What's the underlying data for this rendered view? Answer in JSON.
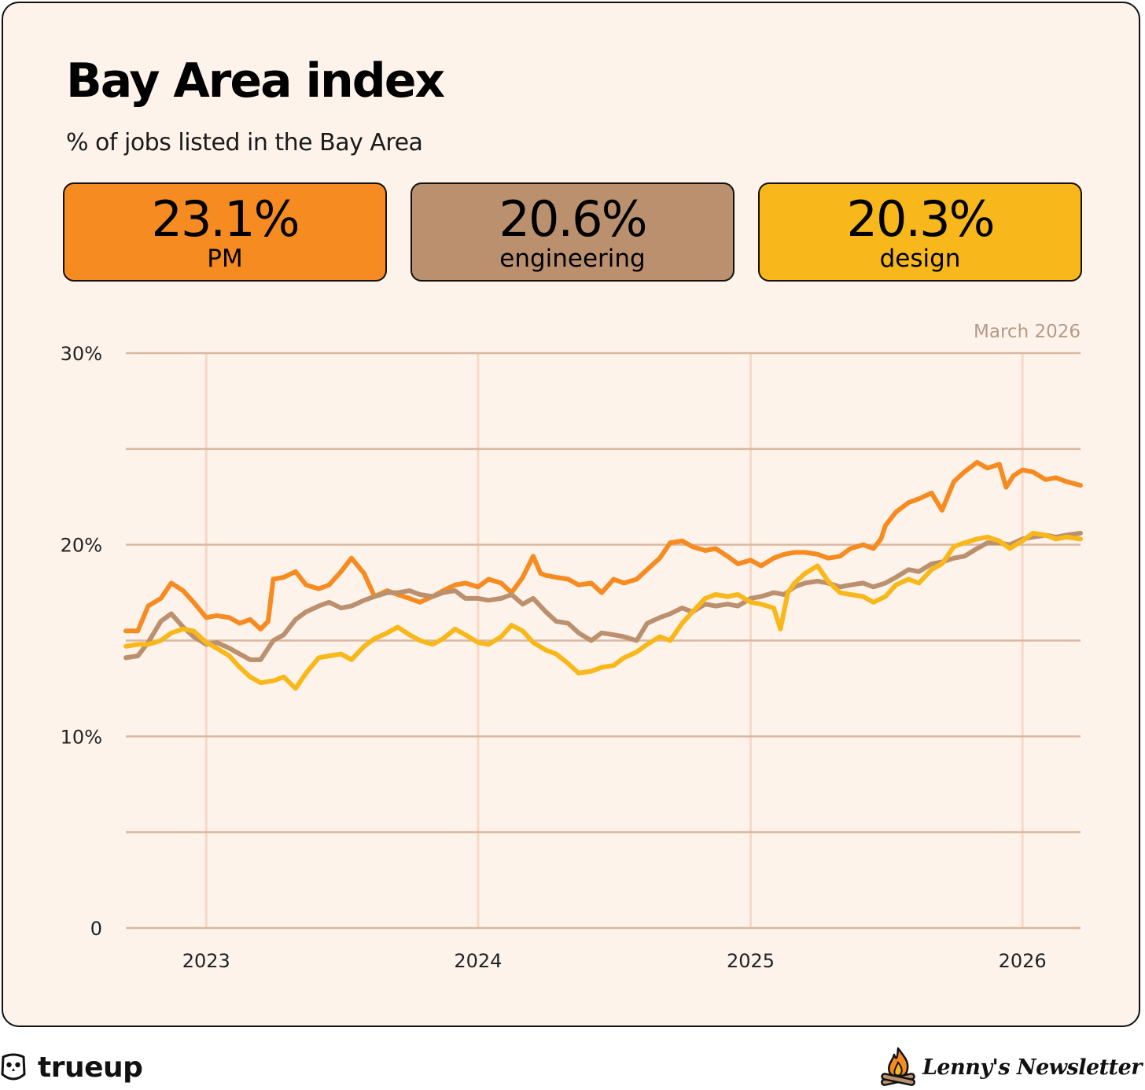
{
  "header": {
    "title": "Bay Area index",
    "subtitle": "% of jobs listed in the Bay Area"
  },
  "kpis": [
    {
      "value": "23.1%",
      "label": "PM",
      "color": "#f68b22"
    },
    {
      "value": "20.6%",
      "label": "engineering",
      "color": "#bb906e"
    },
    {
      "value": "20.3%",
      "label": "design",
      "color": "#f8b81b"
    }
  ],
  "footer": {
    "brand": "trueup",
    "newsletter": "Lenny's Newsletter"
  },
  "chart_data": {
    "type": "line",
    "date_note": "March 2026",
    "ylim": [
      0,
      30
    ],
    "y_ticks": [
      {
        "value": 30,
        "label": "30%"
      },
      {
        "value": 25,
        "label": ""
      },
      {
        "value": 20,
        "label": "20%"
      },
      {
        "value": 15,
        "label": ""
      },
      {
        "value": 10,
        "label": "10%"
      },
      {
        "value": 5,
        "label": ""
      },
      {
        "value": 0,
        "label": "0"
      }
    ],
    "xlim": [
      "2022-09-15",
      "2026-03-20"
    ],
    "x_ticks": [
      {
        "date": "2023-01-01",
        "label": "2023"
      },
      {
        "date": "2024-01-01",
        "label": "2024"
      },
      {
        "date": "2025-01-01",
        "label": "2025"
      },
      {
        "date": "2026-01-01",
        "label": "2026"
      }
    ],
    "grid": "horizontal and vertical",
    "legend": "none",
    "series": [
      {
        "name": "PM",
        "color": "#f68b22",
        "points": [
          [
            "2022-09-15",
            15.5
          ],
          [
            "2022-10-01",
            15.5
          ],
          [
            "2022-10-15",
            16.8
          ],
          [
            "2022-11-01",
            17.2
          ],
          [
            "2022-11-15",
            18.0
          ],
          [
            "2022-12-01",
            17.6
          ],
          [
            "2022-12-15",
            17.0
          ],
          [
            "2023-01-01",
            16.2
          ],
          [
            "2023-01-15",
            16.3
          ],
          [
            "2023-02-01",
            16.2
          ],
          [
            "2023-02-15",
            15.9
          ],
          [
            "2023-03-01",
            16.1
          ],
          [
            "2023-03-15",
            15.6
          ],
          [
            "2023-03-25",
            16.0
          ],
          [
            "2023-04-01",
            18.2
          ],
          [
            "2023-04-15",
            18.3
          ],
          [
            "2023-05-01",
            18.6
          ],
          [
            "2023-05-15",
            17.9
          ],
          [
            "2023-06-01",
            17.7
          ],
          [
            "2023-06-15",
            17.9
          ],
          [
            "2023-07-01",
            18.6
          ],
          [
            "2023-07-15",
            19.3
          ],
          [
            "2023-08-01",
            18.5
          ],
          [
            "2023-08-15",
            17.3
          ],
          [
            "2023-09-01",
            17.6
          ],
          [
            "2023-09-15",
            17.4
          ],
          [
            "2023-10-01",
            17.2
          ],
          [
            "2023-10-15",
            17.0
          ],
          [
            "2023-11-01",
            17.3
          ],
          [
            "2023-11-15",
            17.6
          ],
          [
            "2023-12-01",
            17.9
          ],
          [
            "2023-12-15",
            18.0
          ],
          [
            "2024-01-01",
            17.8
          ],
          [
            "2024-01-15",
            18.2
          ],
          [
            "2024-02-01",
            18.0
          ],
          [
            "2024-02-15",
            17.5
          ],
          [
            "2024-03-01",
            18.3
          ],
          [
            "2024-03-15",
            19.4
          ],
          [
            "2024-03-25",
            18.5
          ],
          [
            "2024-04-01",
            18.4
          ],
          [
            "2024-04-15",
            18.3
          ],
          [
            "2024-05-01",
            18.2
          ],
          [
            "2024-05-15",
            17.9
          ],
          [
            "2024-06-01",
            18.0
          ],
          [
            "2024-06-15",
            17.5
          ],
          [
            "2024-07-01",
            18.2
          ],
          [
            "2024-07-15",
            18.0
          ],
          [
            "2024-08-01",
            18.2
          ],
          [
            "2024-08-15",
            18.7
          ],
          [
            "2024-09-01",
            19.3
          ],
          [
            "2024-09-15",
            20.1
          ],
          [
            "2024-10-01",
            20.2
          ],
          [
            "2024-10-15",
            19.9
          ],
          [
            "2024-11-01",
            19.7
          ],
          [
            "2024-11-15",
            19.8
          ],
          [
            "2024-12-01",
            19.4
          ],
          [
            "2024-12-15",
            19.0
          ],
          [
            "2025-01-01",
            19.2
          ],
          [
            "2025-01-15",
            18.9
          ],
          [
            "2025-02-01",
            19.3
          ],
          [
            "2025-02-15",
            19.5
          ],
          [
            "2025-03-01",
            19.6
          ],
          [
            "2025-03-15",
            19.6
          ],
          [
            "2025-04-01",
            19.5
          ],
          [
            "2025-04-15",
            19.3
          ],
          [
            "2025-05-01",
            19.4
          ],
          [
            "2025-05-15",
            19.8
          ],
          [
            "2025-06-01",
            20.0
          ],
          [
            "2025-06-15",
            19.8
          ],
          [
            "2025-06-25",
            20.3
          ],
          [
            "2025-07-01",
            21.0
          ],
          [
            "2025-07-15",
            21.7
          ],
          [
            "2025-08-01",
            22.2
          ],
          [
            "2025-08-15",
            22.4
          ],
          [
            "2025-09-01",
            22.7
          ],
          [
            "2025-09-15",
            21.8
          ],
          [
            "2025-10-01",
            23.3
          ],
          [
            "2025-10-15",
            23.8
          ],
          [
            "2025-11-01",
            24.3
          ],
          [
            "2025-11-15",
            24.0
          ],
          [
            "2025-12-01",
            24.2
          ],
          [
            "2025-12-10",
            23.0
          ],
          [
            "2025-12-20",
            23.6
          ],
          [
            "2026-01-01",
            23.9
          ],
          [
            "2026-01-15",
            23.8
          ],
          [
            "2026-02-01",
            23.4
          ],
          [
            "2026-02-15",
            23.5
          ],
          [
            "2026-03-01",
            23.3
          ],
          [
            "2026-03-20",
            23.1
          ]
        ]
      },
      {
        "name": "engineering",
        "color": "#bb906e",
        "points": [
          [
            "2022-09-15",
            14.1
          ],
          [
            "2022-10-01",
            14.2
          ],
          [
            "2022-10-15",
            14.9
          ],
          [
            "2022-11-01",
            16.0
          ],
          [
            "2022-11-15",
            16.4
          ],
          [
            "2022-12-01",
            15.7
          ],
          [
            "2022-12-15",
            15.2
          ],
          [
            "2023-01-01",
            14.8
          ],
          [
            "2023-01-15",
            14.9
          ],
          [
            "2023-02-01",
            14.6
          ],
          [
            "2023-02-15",
            14.3
          ],
          [
            "2023-03-01",
            14.0
          ],
          [
            "2023-03-15",
            14.0
          ],
          [
            "2023-04-01",
            15.0
          ],
          [
            "2023-04-15",
            15.3
          ],
          [
            "2023-05-01",
            16.1
          ],
          [
            "2023-05-15",
            16.5
          ],
          [
            "2023-06-01",
            16.8
          ],
          [
            "2023-06-15",
            17.0
          ],
          [
            "2023-07-01",
            16.7
          ],
          [
            "2023-07-15",
            16.8
          ],
          [
            "2023-08-01",
            17.1
          ],
          [
            "2023-08-15",
            17.3
          ],
          [
            "2023-09-01",
            17.5
          ],
          [
            "2023-09-15",
            17.5
          ],
          [
            "2023-10-01",
            17.6
          ],
          [
            "2023-10-15",
            17.4
          ],
          [
            "2023-11-01",
            17.3
          ],
          [
            "2023-11-15",
            17.5
          ],
          [
            "2023-12-01",
            17.6
          ],
          [
            "2023-12-15",
            17.2
          ],
          [
            "2024-01-01",
            17.2
          ],
          [
            "2024-01-15",
            17.1
          ],
          [
            "2024-02-01",
            17.2
          ],
          [
            "2024-02-15",
            17.4
          ],
          [
            "2024-03-01",
            16.9
          ],
          [
            "2024-03-15",
            17.2
          ],
          [
            "2024-04-01",
            16.5
          ],
          [
            "2024-04-15",
            16.0
          ],
          [
            "2024-05-01",
            15.9
          ],
          [
            "2024-05-15",
            15.4
          ],
          [
            "2024-06-01",
            15.0
          ],
          [
            "2024-06-15",
            15.4
          ],
          [
            "2024-07-01",
            15.3
          ],
          [
            "2024-07-15",
            15.2
          ],
          [
            "2024-08-01",
            15.0
          ],
          [
            "2024-08-15",
            15.9
          ],
          [
            "2024-09-01",
            16.2
          ],
          [
            "2024-09-15",
            16.4
          ],
          [
            "2024-10-01",
            16.7
          ],
          [
            "2024-10-15",
            16.5
          ],
          [
            "2024-11-01",
            16.9
          ],
          [
            "2024-11-15",
            16.8
          ],
          [
            "2024-12-01",
            16.9
          ],
          [
            "2024-12-15",
            16.8
          ],
          [
            "2025-01-01",
            17.2
          ],
          [
            "2025-01-15",
            17.3
          ],
          [
            "2025-02-01",
            17.5
          ],
          [
            "2025-02-15",
            17.4
          ],
          [
            "2025-03-01",
            17.8
          ],
          [
            "2025-03-15",
            18.0
          ],
          [
            "2025-04-01",
            18.1
          ],
          [
            "2025-04-15",
            18.0
          ],
          [
            "2025-05-01",
            17.8
          ],
          [
            "2025-05-15",
            17.9
          ],
          [
            "2025-06-01",
            18.0
          ],
          [
            "2025-06-15",
            17.8
          ],
          [
            "2025-07-01",
            18.0
          ],
          [
            "2025-07-15",
            18.3
          ],
          [
            "2025-08-01",
            18.7
          ],
          [
            "2025-08-15",
            18.6
          ],
          [
            "2025-09-01",
            19.0
          ],
          [
            "2025-09-15",
            19.1
          ],
          [
            "2025-10-01",
            19.3
          ],
          [
            "2025-10-15",
            19.4
          ],
          [
            "2025-11-01",
            19.8
          ],
          [
            "2025-11-15",
            20.1
          ],
          [
            "2025-12-01",
            20.1
          ],
          [
            "2025-12-15",
            20.0
          ],
          [
            "2026-01-01",
            20.3
          ],
          [
            "2026-01-15",
            20.4
          ],
          [
            "2026-02-01",
            20.5
          ],
          [
            "2026-02-15",
            20.4
          ],
          [
            "2026-03-01",
            20.5
          ],
          [
            "2026-03-20",
            20.6
          ]
        ]
      },
      {
        "name": "design",
        "color": "#f8b81b",
        "points": [
          [
            "2022-09-15",
            14.7
          ],
          [
            "2022-10-01",
            14.8
          ],
          [
            "2022-10-15",
            14.8
          ],
          [
            "2022-11-01",
            15.0
          ],
          [
            "2022-11-15",
            15.4
          ],
          [
            "2022-12-01",
            15.6
          ],
          [
            "2022-12-15",
            15.5
          ],
          [
            "2023-01-01",
            14.9
          ],
          [
            "2023-01-15",
            14.6
          ],
          [
            "2023-02-01",
            14.2
          ],
          [
            "2023-02-15",
            13.6
          ],
          [
            "2023-03-01",
            13.1
          ],
          [
            "2023-03-15",
            12.8
          ],
          [
            "2023-04-01",
            12.9
          ],
          [
            "2023-04-15",
            13.1
          ],
          [
            "2023-05-01",
            12.5
          ],
          [
            "2023-05-15",
            13.3
          ],
          [
            "2023-06-01",
            14.1
          ],
          [
            "2023-06-15",
            14.2
          ],
          [
            "2023-07-01",
            14.3
          ],
          [
            "2023-07-15",
            14.0
          ],
          [
            "2023-08-01",
            14.7
          ],
          [
            "2023-08-15",
            15.1
          ],
          [
            "2023-09-01",
            15.4
          ],
          [
            "2023-09-15",
            15.7
          ],
          [
            "2023-10-01",
            15.3
          ],
          [
            "2023-10-15",
            15.0
          ],
          [
            "2023-11-01",
            14.8
          ],
          [
            "2023-11-15",
            15.1
          ],
          [
            "2023-12-01",
            15.6
          ],
          [
            "2023-12-15",
            15.3
          ],
          [
            "2024-01-01",
            14.9
          ],
          [
            "2024-01-15",
            14.8
          ],
          [
            "2024-02-01",
            15.2
          ],
          [
            "2024-02-15",
            15.8
          ],
          [
            "2024-03-01",
            15.5
          ],
          [
            "2024-03-15",
            14.9
          ],
          [
            "2024-04-01",
            14.5
          ],
          [
            "2024-04-15",
            14.3
          ],
          [
            "2024-05-01",
            13.8
          ],
          [
            "2024-05-15",
            13.3
          ],
          [
            "2024-06-01",
            13.4
          ],
          [
            "2024-06-15",
            13.6
          ],
          [
            "2024-07-01",
            13.7
          ],
          [
            "2024-07-15",
            14.1
          ],
          [
            "2024-08-01",
            14.4
          ],
          [
            "2024-08-15",
            14.8
          ],
          [
            "2024-09-01",
            15.2
          ],
          [
            "2024-09-15",
            15.0
          ],
          [
            "2024-10-01",
            15.9
          ],
          [
            "2024-10-15",
            16.5
          ],
          [
            "2024-11-01",
            17.2
          ],
          [
            "2024-11-15",
            17.4
          ],
          [
            "2024-12-01",
            17.3
          ],
          [
            "2024-12-15",
            17.4
          ],
          [
            "2025-01-01",
            17.0
          ],
          [
            "2025-01-15",
            16.9
          ],
          [
            "2025-02-01",
            16.7
          ],
          [
            "2025-02-10",
            15.6
          ],
          [
            "2025-02-20",
            17.5
          ],
          [
            "2025-03-01",
            18.0
          ],
          [
            "2025-03-15",
            18.5
          ],
          [
            "2025-04-01",
            18.9
          ],
          [
            "2025-04-15",
            18.1
          ],
          [
            "2025-05-01",
            17.5
          ],
          [
            "2025-05-15",
            17.4
          ],
          [
            "2025-06-01",
            17.3
          ],
          [
            "2025-06-15",
            17.0
          ],
          [
            "2025-07-01",
            17.3
          ],
          [
            "2025-07-15",
            17.9
          ],
          [
            "2025-08-01",
            18.2
          ],
          [
            "2025-08-15",
            18.0
          ],
          [
            "2025-09-01",
            18.7
          ],
          [
            "2025-09-15",
            19.0
          ],
          [
            "2025-10-01",
            19.9
          ],
          [
            "2025-10-15",
            20.1
          ],
          [
            "2025-11-01",
            20.3
          ],
          [
            "2025-11-15",
            20.4
          ],
          [
            "2025-12-01",
            20.2
          ],
          [
            "2025-12-15",
            19.8
          ],
          [
            "2026-01-01",
            20.2
          ],
          [
            "2026-01-15",
            20.6
          ],
          [
            "2026-02-01",
            20.5
          ],
          [
            "2026-02-15",
            20.3
          ],
          [
            "2026-03-01",
            20.4
          ],
          [
            "2026-03-20",
            20.3
          ]
        ]
      }
    ]
  }
}
